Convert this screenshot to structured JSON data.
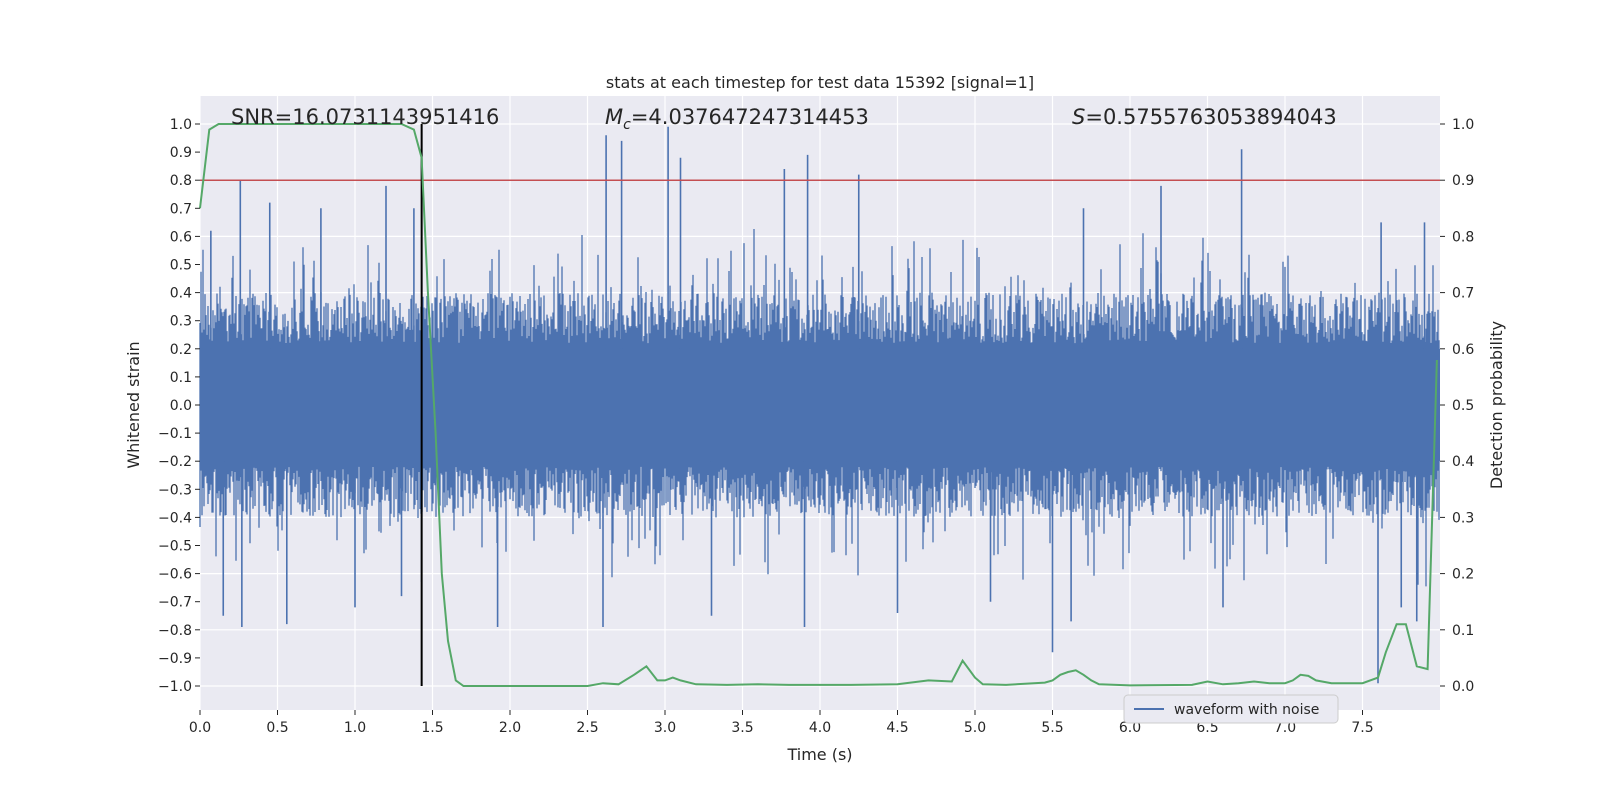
{
  "chart_data": {
    "type": "line",
    "title": "stats at each timestep for test data 15392 [signal=1]",
    "xlabel": "Time (s)",
    "ylabel": "Whitened strain",
    "ylabel_right": "Detection probability",
    "xlim": [
      0.0,
      8.0
    ],
    "ylim": [
      -1.1,
      1.1
    ],
    "ylim_right": [
      -0.05,
      1.05
    ],
    "x_ticks": [
      "0.0",
      "0.5",
      "1.0",
      "1.5",
      "2.0",
      "2.5",
      "3.0",
      "3.5",
      "4.0",
      "4.5",
      "5.0",
      "5.5",
      "6.0",
      "6.5",
      "7.0",
      "7.5"
    ],
    "y_ticks": [
      "1.0",
      "0.9",
      "0.8",
      "0.7",
      "0.6",
      "0.5",
      "0.4",
      "0.3",
      "0.2",
      "0.1",
      "0.0",
      "−0.1",
      "−0.2",
      "−0.3",
      "−0.4",
      "−0.5",
      "−0.6",
      "−0.7",
      "−0.8",
      "−0.9",
      "−1.0"
    ],
    "y_ticks_right": [
      "1.0",
      "0.9",
      "0.8",
      "0.7",
      "0.6",
      "0.5",
      "0.4",
      "0.3",
      "0.2",
      "0.1",
      "0.0"
    ],
    "grid": true,
    "legend_position": "bottom-right",
    "annotations": {
      "snr": "SNR=16.0731143951416",
      "mc_symbol": "M",
      "mc_sub": "c",
      "mc_value": "=4.037647247314453",
      "s_symbol": "S",
      "s_value": "=0.5755763053894043"
    },
    "threshold_line": {
      "y": 0.8,
      "color": "#c44e52"
    },
    "vertical_line": {
      "x": 1.43,
      "color": "#000000"
    },
    "series": [
      {
        "name": "waveform with noise",
        "axis": "left",
        "color": "#4c72b0",
        "style": "noise",
        "typical_amplitude": 0.4,
        "peaks": [
          [
            0.07,
            0.62
          ],
          [
            0.15,
            -0.75
          ],
          [
            0.26,
            0.8
          ],
          [
            0.27,
            -0.79
          ],
          [
            0.45,
            0.72
          ],
          [
            0.56,
            -0.78
          ],
          [
            0.78,
            0.7
          ],
          [
            1.0,
            -0.72
          ],
          [
            1.2,
            0.78
          ],
          [
            1.3,
            -0.68
          ],
          [
            1.38,
            0.7
          ],
          [
            1.43,
            -0.63
          ],
          [
            1.92,
            -0.79
          ],
          [
            2.6,
            -0.79
          ],
          [
            2.62,
            0.96
          ],
          [
            2.72,
            0.94
          ],
          [
            3.02,
            0.99
          ],
          [
            3.1,
            0.88
          ],
          [
            3.3,
            -0.75
          ],
          [
            3.77,
            0.84
          ],
          [
            3.92,
            0.89
          ],
          [
            3.9,
            -0.79
          ],
          [
            4.25,
            0.82
          ],
          [
            4.5,
            -0.74
          ],
          [
            5.1,
            -0.7
          ],
          [
            5.5,
            -0.88
          ],
          [
            5.62,
            -0.77
          ],
          [
            5.7,
            0.7
          ],
          [
            6.2,
            0.78
          ],
          [
            6.72,
            0.91
          ],
          [
            6.6,
            -0.72
          ],
          [
            7.6,
            -0.99
          ],
          [
            7.62,
            0.65
          ],
          [
            7.75,
            -0.72
          ],
          [
            7.85,
            -0.77
          ],
          [
            7.9,
            0.65
          ]
        ]
      },
      {
        "name": "",
        "axis": "right",
        "color": "#55a868",
        "style": "line",
        "x": [
          0.0,
          0.06,
          0.12,
          0.3,
          0.6,
          1.0,
          1.3,
          1.38,
          1.43,
          1.47,
          1.52,
          1.56,
          1.6,
          1.65,
          1.7,
          1.8,
          2.0,
          2.2,
          2.5,
          2.6,
          2.7,
          2.8,
          2.88,
          2.95,
          3.0,
          3.05,
          3.1,
          3.2,
          3.4,
          3.6,
          3.8,
          4.0,
          4.2,
          4.5,
          4.7,
          4.85,
          4.92,
          5.0,
          5.05,
          5.2,
          5.45,
          5.5,
          5.55,
          5.6,
          5.65,
          5.7,
          5.75,
          5.8,
          6.0,
          6.4,
          6.5,
          6.6,
          6.7,
          6.8,
          6.9,
          7.0,
          7.05,
          7.1,
          7.15,
          7.2,
          7.3,
          7.5,
          7.6,
          7.65,
          7.72,
          7.78,
          7.85,
          7.92,
          7.98
        ],
        "y": [
          0.85,
          0.99,
          1.0,
          1.0,
          1.0,
          1.0,
          1.0,
          0.99,
          0.94,
          0.7,
          0.45,
          0.2,
          0.08,
          0.01,
          0.0,
          0.0,
          0.0,
          0.0,
          0.0,
          0.005,
          0.003,
          0.02,
          0.035,
          0.01,
          0.01,
          0.015,
          0.01,
          0.003,
          0.002,
          0.003,
          0.002,
          0.002,
          0.002,
          0.003,
          0.01,
          0.008,
          0.045,
          0.015,
          0.003,
          0.002,
          0.006,
          0.01,
          0.02,
          0.025,
          0.028,
          0.02,
          0.01,
          0.003,
          0.001,
          0.002,
          0.008,
          0.003,
          0.005,
          0.008,
          0.005,
          0.005,
          0.01,
          0.02,
          0.018,
          0.01,
          0.005,
          0.005,
          0.015,
          0.06,
          0.11,
          0.11,
          0.035,
          0.03,
          0.58
        ]
      }
    ]
  }
}
